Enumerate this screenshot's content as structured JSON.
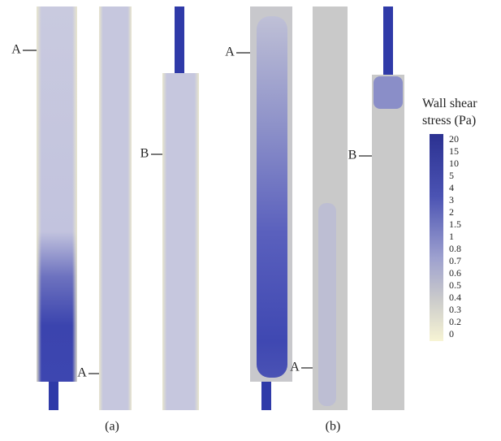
{
  "panels": [
    {
      "label": "(a)"
    },
    {
      "label": "(b)"
    }
  ],
  "markers": [
    "A",
    "A",
    "B",
    "A",
    "A",
    "B"
  ],
  "legend": {
    "title": "Wall shear stress (Pa)",
    "ticks": [
      20,
      15,
      10,
      5,
      4,
      3,
      2,
      1.5,
      1,
      0.8,
      0.7,
      0.6,
      0.5,
      0.4,
      0.3,
      0.2,
      0
    ]
  }
}
